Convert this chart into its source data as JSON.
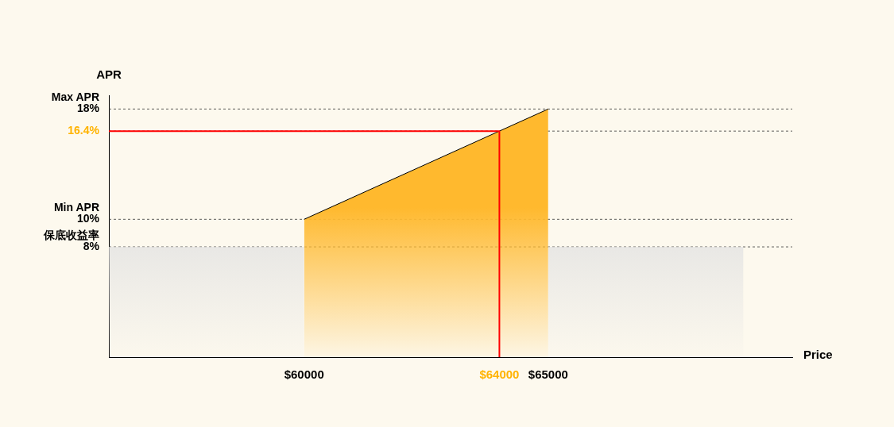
{
  "chart_data": {
    "type": "area",
    "xlabel": "Price",
    "ylabel": "APR",
    "xlim": [
      56000,
      70000
    ],
    "ylim": [
      0,
      19
    ],
    "legend": false,
    "xticks": [
      {
        "value": 60000,
        "label": "$60000"
      },
      {
        "value": 64000,
        "label": "$64000"
      },
      {
        "value": 65000,
        "label": "$65000"
      }
    ],
    "yticks": [
      {
        "value": 8,
        "label": "8%"
      },
      {
        "value": 10,
        "label": "10%"
      },
      {
        "value": 16.4,
        "label": "16.4%"
      },
      {
        "value": 18,
        "label": "18%"
      }
    ],
    "ref_lines": [
      {
        "axis": "y",
        "value": 8,
        "label": "保底收益率",
        "line_style": "dashed"
      },
      {
        "axis": "y",
        "value": 10,
        "label": "Min APR",
        "line_style": "dashed"
      },
      {
        "axis": "y",
        "value": 16.4,
        "line_style": "dashed"
      },
      {
        "axis": "y",
        "value": 18,
        "label": "Max APR",
        "line_style": "dashed"
      }
    ],
    "series": [
      {
        "color": "#e2e2e2",
        "x": [
          56000,
          60000
        ],
        "values": [
          8,
          8
        ]
      },
      {
        "color": "#e2e2e2",
        "x": [
          65000,
          69000
        ],
        "values": [
          8,
          8
        ]
      },
      {
        "color": "#ffb92e",
        "x": [
          60000,
          65000
        ],
        "values": [
          10,
          18
        ]
      },
      {
        "type": "line",
        "color": "#ff0000",
        "x": [
          56000,
          64000,
          64000
        ],
        "values": [
          16.4,
          16.4,
          0
        ]
      }
    ]
  }
}
